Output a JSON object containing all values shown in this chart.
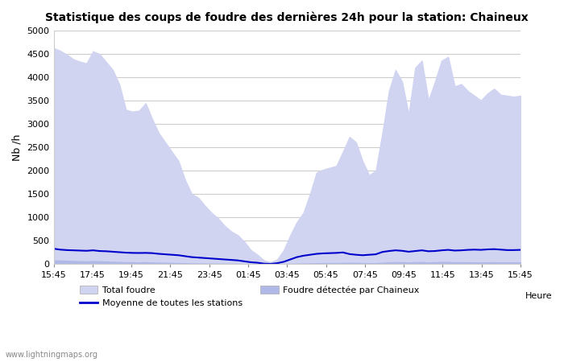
{
  "title": "Statistique des coups de foudre des dernières 24h pour la station: Chaineux",
  "ylabel": "Nb /h",
  "xlabel": "Heure",
  "watermark": "www.lightningmaps.org",
  "ylim": [
    0,
    5000
  ],
  "yticks": [
    0,
    500,
    1000,
    1500,
    2000,
    2500,
    3000,
    3500,
    4000,
    4500,
    5000
  ],
  "xtick_labels": [
    "15:45",
    "17:45",
    "19:45",
    "21:45",
    "23:45",
    "01:45",
    "03:45",
    "05:45",
    "07:45",
    "09:45",
    "11:45",
    "13:45",
    "15:45"
  ],
  "color_total": "#d0d4f0",
  "color_station": "#b0b8e8",
  "color_moyenne": "#0000cc",
  "bg_color": "#ffffff",
  "grid_color": "#cccccc",
  "total_foudre": [
    4620,
    4560,
    4480,
    4380,
    4330,
    4290,
    4550,
    4490,
    4320,
    4150,
    3840,
    3300,
    3260,
    3280,
    3440,
    3100,
    2800,
    2600,
    2400,
    2200,
    1800,
    1500,
    1420,
    1250,
    1100,
    980,
    820,
    700,
    620,
    480,
    300,
    200,
    80,
    40,
    100,
    300,
    620,
    900,
    1100,
    1500,
    1960,
    2020,
    2060,
    2100,
    2400,
    2720,
    2600,
    2200,
    1900,
    2000,
    2800,
    3700,
    4150,
    3900,
    3200,
    4200,
    4350,
    3500,
    3900,
    4350,
    4430,
    3800,
    3850,
    3700,
    3600,
    3500,
    3650,
    3750,
    3620,
    3600,
    3580,
    3600
  ],
  "foudre_station": [
    80,
    75,
    70,
    65,
    60,
    55,
    65,
    60,
    55,
    50,
    45,
    40,
    38,
    35,
    40,
    35,
    30,
    28,
    25,
    22,
    18,
    15,
    14,
    12,
    10,
    9,
    8,
    7,
    6,
    5,
    3,
    2,
    1,
    0,
    1,
    3,
    6,
    9,
    11,
    15,
    20,
    21,
    22,
    22,
    25,
    28,
    26,
    22,
    19,
    20,
    28,
    37,
    42,
    39,
    32,
    42,
    44,
    35,
    39,
    44,
    45,
    38,
    39,
    37,
    36,
    35,
    37,
    38,
    36,
    36,
    36,
    36
  ],
  "moyenne": [
    330,
    310,
    300,
    295,
    290,
    285,
    295,
    280,
    275,
    265,
    255,
    245,
    240,
    238,
    240,
    235,
    220,
    210,
    200,
    190,
    170,
    150,
    140,
    130,
    120,
    110,
    100,
    90,
    80,
    60,
    40,
    30,
    10,
    5,
    20,
    50,
    100,
    150,
    180,
    200,
    220,
    230,
    235,
    240,
    250,
    215,
    200,
    190,
    200,
    210,
    260,
    280,
    295,
    285,
    265,
    280,
    295,
    275,
    280,
    295,
    305,
    290,
    295,
    305,
    310,
    305,
    315,
    320,
    310,
    300,
    300,
    305
  ]
}
